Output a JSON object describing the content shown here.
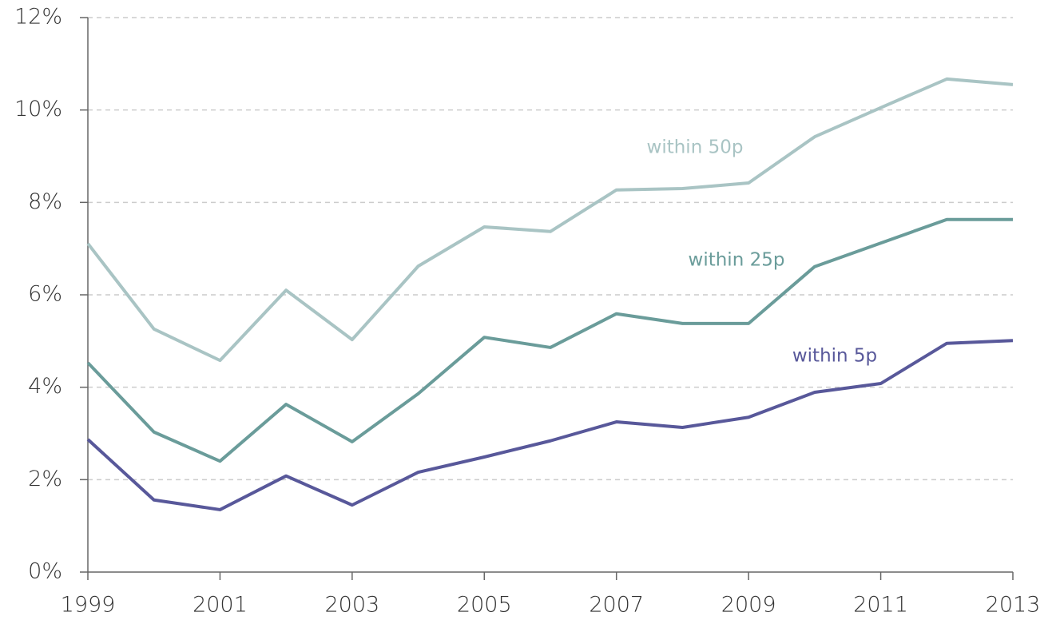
{
  "chart_data": {
    "type": "line",
    "x": [
      1999,
      2000,
      2001,
      2002,
      2003,
      2004,
      2005,
      2006,
      2007,
      2008,
      2009,
      2010,
      2011,
      2012,
      2013
    ],
    "series": [
      {
        "name": "within 50p",
        "color": "#a9c4c4",
        "values": [
          7.11,
          5.26,
          4.58,
          6.1,
          5.03,
          6.62,
          7.47,
          7.37,
          8.27,
          8.3,
          8.42,
          9.42,
          10.05,
          10.67,
          10.55
        ]
      },
      {
        "name": "within 25p",
        "color": "#6a9c9a",
        "values": [
          4.53,
          3.03,
          2.4,
          3.63,
          2.82,
          3.86,
          5.08,
          4.86,
          5.59,
          5.38,
          5.38,
          6.61,
          7.12,
          7.63,
          7.63
        ]
      },
      {
        "name": "within 5p",
        "color": "#58589a",
        "values": [
          2.87,
          1.56,
          1.35,
          2.08,
          1.45,
          2.16,
          2.49,
          2.84,
          3.25,
          3.13,
          3.35,
          3.89,
          4.08,
          4.95,
          5.01
        ]
      }
    ],
    "xlim": [
      1999,
      2013
    ],
    "xticks": [
      1999,
      2001,
      2003,
      2005,
      2007,
      2009,
      2011,
      2013
    ],
    "ylim": [
      0,
      12
    ],
    "yticks": [
      {
        "value": 0,
        "label": "0%"
      },
      {
        "value": 2,
        "label": "2%"
      },
      {
        "value": 4,
        "label": "4%"
      },
      {
        "value": 6,
        "label": "6%"
      },
      {
        "value": 8,
        "label": "8%"
      },
      {
        "value": 10,
        "label": "10%"
      },
      {
        "value": 12,
        "label": "12%"
      }
    ],
    "grid": true
  }
}
